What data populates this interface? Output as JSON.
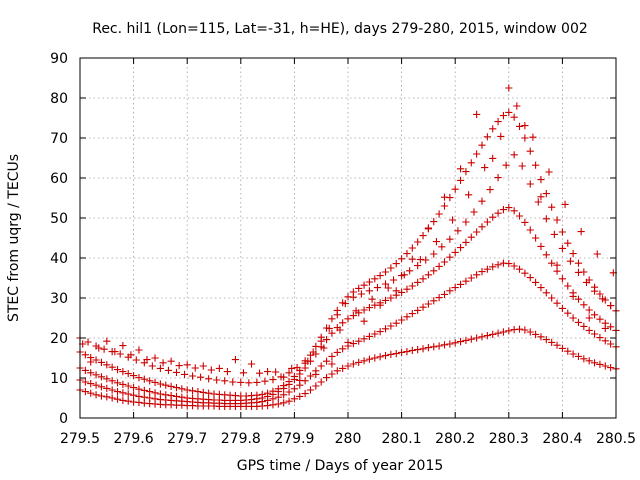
{
  "chart_data": {
    "type": "scatter",
    "title": "Rec. hil1 (Lon=115, Lat=-31, h=HE), days 279-280, 2015, window 002",
    "xlabel": "GPS time / Days of year 2015",
    "ylabel": "STEC from uqrg / TECUs",
    "xlim": [
      279.5,
      280.5
    ],
    "ylim": [
      0,
      90
    ],
    "xticks": [
      279.5,
      279.6,
      279.7,
      279.8,
      279.9,
      280,
      280.1,
      280.2,
      280.3,
      280.4,
      280.5
    ],
    "xtick_labels": [
      "279.5",
      "279.6",
      "279.7",
      "279.8",
      "279.9",
      "280",
      "280.1",
      "280.2",
      "280.3",
      "280.4",
      "280.5"
    ],
    "yticks": [
      0,
      10,
      20,
      30,
      40,
      50,
      60,
      70,
      80,
      90
    ],
    "ytick_labels": [
      "0",
      "10",
      "20",
      "30",
      "40",
      "50",
      "60",
      "70",
      "80",
      "90"
    ],
    "grid": true,
    "marker_color": "#cc0000",
    "marker": "plus",
    "series": [
      {
        "x": [
          279.5,
          279.51,
          279.52,
          279.53,
          279.54,
          279.55,
          279.56,
          279.57,
          279.58,
          279.59,
          279.6,
          279.61,
          279.62,
          279.63,
          279.64,
          279.65,
          279.66,
          279.67,
          279.68,
          279.69,
          279.7,
          279.71,
          279.72,
          279.73,
          279.74,
          279.75,
          279.76,
          279.77,
          279.78,
          279.79,
          279.8,
          279.81,
          279.82,
          279.83,
          279.84,
          279.85,
          279.86,
          279.87,
          279.88,
          279.89,
          279.9,
          279.91,
          279.92,
          279.93,
          279.94,
          279.95,
          279.96,
          279.97,
          279.98,
          279.99,
          280.0,
          280.01,
          280.02,
          280.03,
          280.04,
          280.05,
          280.06,
          280.07,
          280.08,
          280.09,
          280.1,
          280.11,
          280.12,
          280.13,
          280.14,
          280.15,
          280.16,
          280.17,
          280.18,
          280.19,
          280.2,
          280.21,
          280.22,
          280.23,
          280.24,
          280.25,
          280.26,
          280.27,
          280.28,
          280.29,
          280.3,
          280.31,
          280.32,
          280.33,
          280.34,
          280.35,
          280.36,
          280.37,
          280.38,
          280.39,
          280.4,
          280.41,
          280.42,
          280.43,
          280.44,
          280.45,
          280.46,
          280.47,
          280.48,
          280.49,
          280.5
        ],
        "y": [
          7.0,
          6.6,
          6.2,
          5.8,
          5.5,
          5.3,
          5.0,
          4.7,
          4.4,
          4.2,
          4.0,
          3.9,
          3.7,
          3.6,
          3.5,
          3.4,
          3.3,
          3.3,
          3.2,
          3.2,
          3.1,
          3.1,
          3.0,
          3.0,
          3.0,
          3.0,
          2.9,
          2.9,
          2.9,
          2.9,
          2.9,
          2.9,
          2.9,
          2.9,
          3.0,
          3.1,
          3.3,
          3.5,
          3.8,
          4.2,
          4.8,
          5.4,
          6.1,
          7.0,
          8.0,
          9.0,
          10.1,
          11.0,
          11.8,
          12.4,
          13.0,
          13.5,
          13.9,
          14.3,
          14.7,
          15.0,
          15.3,
          15.6,
          15.9,
          16.1,
          16.4,
          16.6,
          16.9,
          17.1,
          17.3,
          17.6,
          17.8,
          18.0,
          18.3,
          18.5,
          18.8,
          19.1,
          19.4,
          19.7,
          20.0,
          20.3,
          20.6,
          20.9,
          21.2,
          21.5,
          21.8,
          22.1,
          22.2,
          22.0,
          21.5,
          20.9,
          20.3,
          19.6,
          18.9,
          18.2,
          17.4,
          16.7,
          16.0,
          15.4,
          14.8,
          14.3,
          13.8,
          13.4,
          13.0,
          12.6,
          12.3
        ]
      },
      {
        "x": [
          279.5,
          279.51,
          279.52,
          279.53,
          279.54,
          279.55,
          279.56,
          279.57,
          279.58,
          279.59,
          279.6,
          279.61,
          279.62,
          279.63,
          279.64,
          279.65,
          279.66,
          279.67,
          279.68,
          279.69,
          279.7,
          279.71,
          279.72,
          279.73,
          279.74,
          279.75,
          279.76,
          279.77,
          279.78,
          279.79,
          279.8,
          279.81,
          279.82,
          279.83,
          279.84,
          279.85,
          279.86,
          279.87,
          279.88,
          279.89,
          279.9,
          279.91,
          279.92,
          279.93,
          279.94,
          279.95,
          279.96,
          279.97,
          279.98,
          279.99,
          280.0,
          280.01,
          280.02,
          280.03,
          280.04,
          280.05,
          280.06,
          280.07,
          280.08,
          280.09,
          280.1,
          280.11,
          280.12,
          280.13,
          280.14,
          280.15,
          280.16,
          280.17,
          280.18,
          280.19,
          280.2,
          280.21,
          280.22,
          280.23,
          280.24,
          280.25,
          280.26,
          280.27,
          280.28,
          280.29,
          280.3,
          280.31,
          280.32,
          280.33,
          280.34,
          280.35,
          280.36,
          280.37,
          280.38,
          280.39,
          280.4,
          280.41,
          280.42,
          280.43,
          280.44,
          280.45,
          280.46,
          280.47,
          280.48,
          280.49,
          280.5
        ],
        "y": [
          9.5,
          9.0,
          8.6,
          8.2,
          7.8,
          7.4,
          7.0,
          6.6,
          6.3,
          6.0,
          5.7,
          5.4,
          5.2,
          5.0,
          4.8,
          4.6,
          4.5,
          4.4,
          4.3,
          4.2,
          4.1,
          4.0,
          3.9,
          3.8,
          3.8,
          3.7,
          3.7,
          3.6,
          3.6,
          3.6,
          3.6,
          3.7,
          3.8,
          3.9,
          4.1,
          4.4,
          4.8,
          5.2,
          5.8,
          6.5,
          7.3,
          8.2,
          9.3,
          10.5,
          11.8,
          13.0,
          14.2,
          15.4,
          16.4,
          17.3,
          18.0,
          18.6,
          19.2,
          19.8,
          20.4,
          21.0,
          21.6,
          22.3,
          23.0,
          23.7,
          24.5,
          25.3,
          26.1,
          26.9,
          27.7,
          28.5,
          29.3,
          30.1,
          30.9,
          31.8,
          32.6,
          33.4,
          34.2,
          35.0,
          35.8,
          36.6,
          37.2,
          37.8,
          38.3,
          38.7,
          38.6,
          38.0,
          37.2,
          36.2,
          35.1,
          33.9,
          32.6,
          31.3,
          30.0,
          28.7,
          27.4,
          26.2,
          25.0,
          23.9,
          22.9,
          21.9,
          21.0,
          20.1,
          19.3,
          18.5,
          17.8
        ]
      },
      {
        "x": [
          279.5,
          279.51,
          279.52,
          279.53,
          279.54,
          279.55,
          279.56,
          279.57,
          279.58,
          279.59,
          279.6,
          279.61,
          279.62,
          279.63,
          279.64,
          279.65,
          279.66,
          279.67,
          279.68,
          279.69,
          279.7,
          279.71,
          279.72,
          279.73,
          279.74,
          279.75,
          279.76,
          279.77,
          279.78,
          279.79,
          279.8,
          279.81,
          279.82,
          279.83,
          279.84,
          279.85,
          279.86,
          279.87,
          279.88,
          279.89,
          279.9,
          279.91,
          279.92,
          279.93,
          279.94,
          279.95,
          279.96,
          279.97,
          279.98,
          279.99,
          280.0,
          280.01,
          280.02,
          280.03,
          280.04,
          280.05,
          280.06,
          280.07,
          280.08,
          280.09,
          280.1,
          280.11,
          280.12,
          280.13,
          280.14,
          280.15,
          280.16,
          280.17,
          280.18,
          280.19,
          280.2,
          280.21,
          280.22,
          280.23,
          280.24,
          280.25,
          280.26,
          280.27,
          280.28,
          280.29,
          280.3,
          280.31,
          280.32,
          280.33,
          280.34,
          280.35,
          280.36,
          280.37,
          280.38,
          280.39,
          280.4,
          280.41,
          280.42,
          280.43,
          280.44,
          280.45,
          280.46,
          280.47,
          280.48,
          280.49,
          280.5
        ],
        "y": [
          12.5,
          11.9,
          11.3,
          10.8,
          10.3,
          9.8,
          9.3,
          8.8,
          8.4,
          8.0,
          7.6,
          7.2,
          6.9,
          6.6,
          6.3,
          6.0,
          5.8,
          5.6,
          5.4,
          5.2,
          5.0,
          4.9,
          4.8,
          4.7,
          4.6,
          4.5,
          4.5,
          4.4,
          4.4,
          4.4,
          4.4,
          4.5,
          4.6,
          4.8,
          5.0,
          5.4,
          5.9,
          6.6,
          7.4,
          8.4,
          9.6,
          11.0,
          12.5,
          14.2,
          16.0,
          17.8,
          19.6,
          21.2,
          22.6,
          23.8,
          24.8,
          25.6,
          26.3,
          27.0,
          27.6,
          28.2,
          28.8,
          29.4,
          30.0,
          30.7,
          31.4,
          32.2,
          33.0,
          33.9,
          34.8,
          35.8,
          36.8,
          37.9,
          39.0,
          40.2,
          41.4,
          42.6,
          43.9,
          45.2,
          46.5,
          47.8,
          49.0,
          50.2,
          51.2,
          52.1,
          52.6,
          51.8,
          50.5,
          48.9,
          47.0,
          45.0,
          42.9,
          40.8,
          38.7,
          36.7,
          34.8,
          33.0,
          31.3,
          29.7,
          28.3,
          27.0,
          25.8,
          24.7,
          23.7,
          22.8,
          21.9
        ]
      },
      {
        "x": [
          279.5,
          279.51,
          279.52,
          279.53,
          279.54,
          279.55,
          279.56,
          279.57,
          279.58,
          279.59,
          279.6,
          279.61,
          279.62,
          279.63,
          279.64,
          279.65,
          279.66,
          279.67,
          279.68,
          279.69,
          279.7,
          279.71,
          279.72,
          279.73,
          279.74,
          279.75,
          279.76,
          279.77,
          279.78,
          279.79,
          279.8,
          279.81,
          279.82,
          279.83,
          279.84,
          279.85,
          279.86,
          279.87,
          279.88,
          279.89,
          279.9,
          279.91,
          279.92,
          279.93,
          279.94,
          279.95,
          279.96,
          279.97,
          279.98,
          279.99,
          280.0,
          280.01,
          280.02,
          280.03,
          280.04,
          280.05,
          280.06,
          280.07,
          280.08,
          280.09,
          280.1,
          280.11,
          280.12,
          280.13,
          280.14,
          280.15,
          280.16,
          280.17,
          280.18,
          280.19,
          280.2,
          280.21,
          280.22,
          280.23,
          280.24,
          280.25,
          280.26,
          280.27,
          280.28,
          280.29,
          280.3,
          280.31,
          280.32,
          280.33,
          280.34,
          280.35,
          280.36,
          280.37,
          280.38,
          280.39,
          280.4,
          280.41,
          280.42,
          280.43,
          280.44,
          280.45,
          280.46,
          280.47,
          280.48,
          280.49,
          280.5
        ],
        "y": [
          16.5,
          15.8,
          15.1,
          14.5,
          13.9,
          13.3,
          12.7,
          12.1,
          11.6,
          11.1,
          10.6,
          10.1,
          9.7,
          9.3,
          8.9,
          8.5,
          8.2,
          7.9,
          7.6,
          7.3,
          7.0,
          6.8,
          6.6,
          6.4,
          6.2,
          6.0,
          5.9,
          5.8,
          5.7,
          5.6,
          5.5,
          5.5,
          5.6,
          5.7,
          5.9,
          6.2,
          6.7,
          7.3,
          8.1,
          9.1,
          10.4,
          11.9,
          13.7,
          15.7,
          17.9,
          20.2,
          22.5,
          24.8,
          26.9,
          28.8,
          30.3,
          31.5,
          32.4,
          33.2,
          34.0,
          34.8,
          35.6,
          36.5,
          37.5,
          38.6,
          39.8,
          41.1,
          42.5,
          44.0,
          45.6,
          47.3,
          49.1,
          51.0,
          53.0,
          55.1,
          57.2,
          59.4,
          61.6,
          63.8,
          66.0,
          68.2,
          70.3,
          72.3,
          74.1,
          75.6,
          76.4,
          75.2,
          72.9,
          70.0,
          66.7,
          63.2,
          59.6,
          56.1,
          52.7,
          49.5,
          46.5,
          43.7,
          41.1,
          38.7,
          36.5,
          34.5,
          32.7,
          31.0,
          29.5,
          28.1,
          26.8
        ]
      },
      {
        "x": [
          279.5,
          279.515,
          279.53,
          279.545,
          279.56,
          279.575,
          279.59,
          279.605,
          279.62,
          279.635,
          279.65,
          279.665,
          279.68,
          279.695,
          279.71,
          279.725,
          279.74,
          279.755,
          279.77,
          279.785,
          279.8,
          279.815,
          279.83,
          279.845,
          279.86,
          279.875,
          279.89,
          279.905,
          279.92,
          279.935,
          279.95,
          279.965,
          279.98,
          279.995,
          280.01,
          280.025,
          280.04,
          280.055,
          280.07,
          280.085,
          280.1,
          280.115,
          280.13,
          280.145,
          280.16,
          280.175,
          280.19,
          280.205,
          280.22,
          280.235,
          280.25,
          280.265,
          280.28,
          280.295,
          280.31,
          280.325,
          280.34,
          280.355,
          280.37,
          280.385,
          280.4,
          280.415,
          280.43,
          280.445,
          280.46,
          280.475,
          280.49
        ],
        "y": [
          20.0,
          19.0,
          18.0,
          17.2,
          16.6,
          16.0,
          15.2,
          14.5,
          13.8,
          13.0,
          12.4,
          11.9,
          11.4,
          10.9,
          10.5,
          10.2,
          9.8,
          9.5,
          9.3,
          9.0,
          8.9,
          8.8,
          8.9,
          9.2,
          9.6,
          10.3,
          11.3,
          12.6,
          14.3,
          16.5,
          19.2,
          22.4,
          25.8,
          28.6,
          30.2,
          31.0,
          31.8,
          32.6,
          33.5,
          34.5,
          35.6,
          36.8,
          38.1,
          39.5,
          41.0,
          42.8,
          44.7,
          46.8,
          49.0,
          51.5,
          54.2,
          57.1,
          60.1,
          63.2,
          65.8,
          63.0,
          58.5,
          54.0,
          49.8,
          45.9,
          42.4,
          39.2,
          36.4,
          33.9,
          31.7,
          29.8,
          28.1
        ]
      },
      {
        "x": [
          279.505,
          279.535,
          279.565,
          279.595,
          279.625,
          279.655,
          279.685,
          279.715,
          279.745,
          279.775,
          279.805,
          279.835,
          279.865,
          279.895,
          279.925,
          279.955,
          279.985,
          280.015,
          280.045,
          280.075,
          280.105,
          280.135,
          280.165,
          280.195,
          280.225,
          280.255,
          280.285,
          280.315,
          280.345,
          280.375,
          280.405,
          280.435,
          280.465,
          280.495
        ],
        "y": [
          18.5,
          17.5,
          16.6,
          15.8,
          14.6,
          13.8,
          13.1,
          12.5,
          12.0,
          11.6,
          11.3,
          11.2,
          11.5,
          12.4,
          14.2,
          17.5,
          22.0,
          26.8,
          29.7,
          32.5,
          35.8,
          39.6,
          44.1,
          49.5,
          55.8,
          62.6,
          70.4,
          78.0,
          70.2,
          61.5,
          53.4,
          46.6,
          41.0,
          36.3
        ]
      },
      {
        "x": [
          279.52,
          279.55,
          279.58,
          279.61,
          279.64,
          279.67,
          279.7,
          279.73,
          279.76,
          279.79,
          279.82,
          279.85,
          279.88,
          279.91,
          279.94,
          279.97,
          280.0,
          280.03,
          280.06,
          280.09,
          280.12,
          280.15,
          280.18,
          280.21,
          280.24,
          280.27,
          280.3,
          280.33,
          280.36,
          280.39,
          280.42,
          280.45,
          280.48
        ],
        "y": [
          14.0,
          19.2,
          18.1,
          17.0,
          15.0,
          14.2,
          13.3,
          13.0,
          12.4,
          14.6,
          13.5,
          11.6,
          10.2,
          9.4,
          10.9,
          13.5,
          18.9,
          24.2,
          28.2,
          31.8,
          39.7,
          47.5,
          55.2,
          62.3,
          75.9,
          64.9,
          82.5,
          73.1,
          55.3,
          38.2,
          30.4,
          25.0,
          22.4
        ]
      }
    ]
  }
}
